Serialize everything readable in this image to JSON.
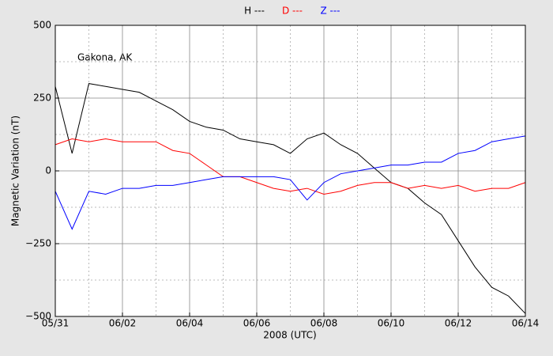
{
  "chart_data": {
    "type": "line",
    "xlabel": "2008 (UTC)",
    "ylabel": "Magnetic Variation (nT)",
    "annotation": "Gakona, AK",
    "grid": true,
    "x": [
      "2008-05-31T00:00",
      "2008-05-31T12:00",
      "2008-06-01T00:00",
      "2008-06-01T12:00",
      "2008-06-02T00:00",
      "2008-06-02T12:00",
      "2008-06-03T00:00",
      "2008-06-03T12:00",
      "2008-06-04T00:00",
      "2008-06-04T12:00",
      "2008-06-05T00:00",
      "2008-06-05T12:00",
      "2008-06-06T00:00",
      "2008-06-06T12:00",
      "2008-06-07T00:00",
      "2008-06-07T12:00",
      "2008-06-08T00:00",
      "2008-06-08T12:00",
      "2008-06-09T00:00",
      "2008-06-09T12:00",
      "2008-06-10T00:00",
      "2008-06-10T12:00",
      "2008-06-11T00:00",
      "2008-06-11T12:00",
      "2008-06-12T00:00",
      "2008-06-12T12:00",
      "2008-06-13T00:00",
      "2008-06-13T12:00",
      "2008-06-14T00:00"
    ],
    "series": [
      {
        "name": "H ---",
        "color": "#000000",
        "values": [
          290,
          60,
          300,
          290,
          280,
          270,
          240,
          210,
          170,
          150,
          140,
          110,
          100,
          90,
          60,
          110,
          130,
          90,
          60,
          10,
          -40,
          -60,
          -110,
          -150,
          -240,
          -330,
          -400,
          -430,
          -490
        ]
      },
      {
        "name": "D ---",
        "color": "#ff0000",
        "values": [
          90,
          110,
          100,
          110,
          100,
          100,
          100,
          70,
          60,
          20,
          -20,
          -20,
          -40,
          -60,
          -70,
          -60,
          -80,
          -70,
          -50,
          -40,
          -40,
          -60,
          -50,
          -60,
          -50,
          -70,
          -60,
          -60,
          -40
        ]
      },
      {
        "name": "Z ---",
        "color": "#0000ff",
        "values": [
          -70,
          -200,
          -70,
          -80,
          -60,
          -60,
          -50,
          -50,
          -40,
          -30,
          -20,
          -20,
          -20,
          -20,
          -30,
          -100,
          -40,
          -10,
          0,
          10,
          20,
          20,
          30,
          30,
          60,
          70,
          100,
          110,
          120
        ]
      }
    ],
    "xlim": [
      "2008-05-31T00:00",
      "2008-06-14T00:00"
    ],
    "xticks": [
      {
        "value": "2008-05-31T00:00",
        "label": "05/31"
      },
      {
        "value": "2008-06-02T00:00",
        "label": "06/02"
      },
      {
        "value": "2008-06-04T00:00",
        "label": "06/04"
      },
      {
        "value": "2008-06-06T00:00",
        "label": "06/06"
      },
      {
        "value": "2008-06-08T00:00",
        "label": "06/08"
      },
      {
        "value": "2008-06-10T00:00",
        "label": "06/10"
      },
      {
        "value": "2008-06-12T00:00",
        "label": "06/12"
      },
      {
        "value": "2008-06-14T00:00",
        "label": "06/14"
      }
    ],
    "ylim": [
      -500,
      500
    ],
    "yticks": [
      {
        "value": -500,
        "label": "−500"
      },
      {
        "value": -250,
        "label": "−250"
      },
      0,
      250,
      500
    ]
  }
}
